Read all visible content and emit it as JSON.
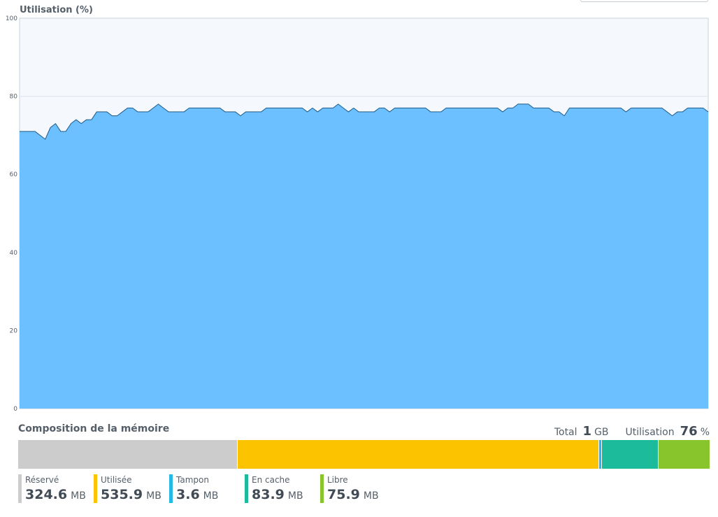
{
  "chart": {
    "title": "Utilisation (%)"
  },
  "chart_data": {
    "type": "area",
    "title": "Utilisation (%)",
    "xlabel": "",
    "ylabel": "",
    "ylim": [
      0,
      100
    ],
    "y_ticks": [
      "0",
      "20",
      "40",
      "60",
      "80",
      "100"
    ],
    "grid": true,
    "series": [
      {
        "values": [
          71,
          71,
          71,
          71,
          70,
          69,
          72,
          73,
          71,
          71,
          73,
          74,
          73,
          74,
          74,
          76,
          76,
          76,
          75,
          75,
          76,
          77,
          77,
          76,
          76,
          76,
          77,
          78,
          77,
          76,
          76,
          76,
          76,
          77,
          77,
          77,
          77,
          77,
          77,
          77,
          76,
          76,
          76,
          75,
          76,
          76,
          76,
          76,
          77,
          77,
          77,
          77,
          77,
          77,
          77,
          77,
          76,
          77,
          76,
          77,
          77,
          77,
          78,
          77,
          76,
          77,
          76,
          76,
          76,
          76,
          77,
          77,
          76,
          77,
          77,
          77,
          77,
          77,
          77,
          77,
          76,
          76,
          76,
          77,
          77,
          77,
          77,
          77,
          77,
          77,
          77,
          77,
          77,
          77,
          76,
          77,
          77,
          78,
          78,
          78,
          77,
          77,
          77,
          77,
          76,
          76,
          75,
          77,
          77,
          77,
          77,
          77,
          77,
          77,
          77,
          77,
          77,
          77,
          76,
          77,
          77,
          77,
          77,
          77,
          77,
          77,
          76,
          75,
          76,
          76,
          77,
          77,
          77,
          77,
          76
        ]
      }
    ],
    "colors": {
      "fill": "#6cc0ff",
      "line": "#1f5a86"
    }
  },
  "memory": {
    "title": "Composition de la mémoire",
    "total_label": "Total",
    "total_value": "1",
    "total_unit": "GB",
    "usage_label": "Utilisation",
    "usage_value": "76",
    "usage_unit": "%",
    "segments": [
      {
        "label": "Réservé",
        "value": "324.6",
        "unit": "MB",
        "mb": 324.6,
        "color": "#cccccc"
      },
      {
        "label": "Utilisée",
        "value": "535.9",
        "unit": "MB",
        "mb": 535.9,
        "color": "#fcc300"
      },
      {
        "label": "Tampon",
        "value": "3.6",
        "unit": "MB",
        "mb": 3.6,
        "color": "#26b9e6"
      },
      {
        "label": "En cache",
        "value": "83.9",
        "unit": "MB",
        "mb": 83.9,
        "color": "#1bbb9b"
      },
      {
        "label": "Libre",
        "value": "75.9",
        "unit": "MB",
        "mb": 75.9,
        "color": "#88c52c"
      }
    ]
  }
}
